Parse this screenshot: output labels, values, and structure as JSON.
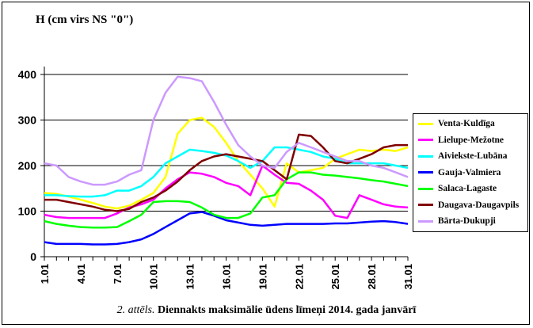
{
  "chart_data": {
    "type": "line",
    "ylabel": "H (cm virs NS \"0\")",
    "xlabel": "",
    "ylim": [
      0,
      400
    ],
    "yticks": [
      0,
      100,
      200,
      300,
      400
    ],
    "x": [
      1,
      2,
      3,
      4,
      5,
      6,
      7,
      8,
      9,
      10,
      11,
      12,
      13,
      14,
      15,
      16,
      17,
      18,
      19,
      20,
      21,
      22,
      23,
      24,
      25,
      26,
      27,
      28,
      29,
      30,
      31
    ],
    "tick_labels": [
      "1.01",
      "4.01",
      "7.01",
      "10.01",
      "13.01",
      "16.01",
      "19.01",
      "22.01",
      "25.01",
      "28.01",
      "31.01"
    ],
    "tick_positions": [
      1,
      4,
      7,
      10,
      13,
      16,
      19,
      22,
      25,
      28,
      31
    ],
    "grid": "horizontal",
    "legend": "right",
    "series": [
      {
        "name": "Venta-Kuldīga",
        "color": "#ffff00",
        "values": [
          140,
          138,
          132,
          125,
          118,
          110,
          106,
          112,
          125,
          140,
          175,
          270,
          300,
          305,
          285,
          250,
          210,
          180,
          150,
          110,
          205,
          185,
          190,
          195,
          215,
          225,
          235,
          232,
          235,
          232,
          240
        ]
      },
      {
        "name": "Lielupe-Mežotne",
        "color": "#ff00ff",
        "values": [
          92,
          87,
          85,
          85,
          85,
          85,
          95,
          108,
          115,
          125,
          150,
          170,
          185,
          182,
          175,
          162,
          155,
          135,
          200,
          180,
          162,
          160,
          145,
          125,
          90,
          85,
          135,
          125,
          115,
          110,
          108
        ]
      },
      {
        "name": "Aiviekste-Lubāna",
        "color": "#00ffff",
        "values": [
          135,
          135,
          133,
          132,
          132,
          135,
          145,
          145,
          155,
          175,
          205,
          220,
          235,
          232,
          228,
          222,
          210,
          195,
          210,
          240,
          240,
          235,
          230,
          220,
          215,
          205,
          205,
          205,
          205,
          200,
          195
        ]
      },
      {
        "name": "Gauja-Valmiera",
        "color": "#0000ff",
        "values": [
          32,
          28,
          28,
          28,
          27,
          27,
          28,
          32,
          38,
          50,
          65,
          80,
          95,
          98,
          90,
          80,
          75,
          70,
          68,
          70,
          72,
          72,
          72,
          72,
          73,
          73,
          75,
          77,
          78,
          76,
          72
        ]
      },
      {
        "name": "Salaca-Lagaste",
        "color": "#00ff00",
        "values": [
          78,
          72,
          68,
          65,
          64,
          64,
          65,
          78,
          92,
          120,
          122,
          122,
          120,
          108,
          92,
          85,
          85,
          95,
          130,
          135,
          170,
          185,
          185,
          180,
          178,
          175,
          172,
          168,
          165,
          160,
          155
        ]
      },
      {
        "name": "Daugava-Daugavpils",
        "color": "#800000",
        "values": [
          125,
          125,
          120,
          115,
          110,
          103,
          100,
          105,
          120,
          130,
          145,
          165,
          190,
          210,
          220,
          225,
          220,
          215,
          210,
          190,
          170,
          268,
          265,
          240,
          210,
          205,
          215,
          225,
          240,
          245,
          245
        ]
      },
      {
        "name": "Bārta-Dukupji",
        "color": "#cc99ff",
        "values": [
          205,
          200,
          175,
          165,
          158,
          158,
          165,
          180,
          190,
          300,
          360,
          395,
          392,
          385,
          340,
          290,
          245,
          220,
          200,
          195,
          230,
          250,
          240,
          230,
          220,
          210,
          210,
          200,
          195,
          185,
          175
        ]
      }
    ]
  },
  "caption": {
    "prefix": "2. attēls.",
    "text": "Diennakts maksimālie ūdens līmeņi 2014. gada janvārī"
  }
}
